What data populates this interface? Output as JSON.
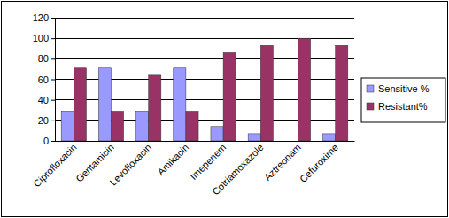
{
  "chart_data": {
    "type": "bar",
    "categories": [
      "Ciprofloxacin",
      "Gentamicin",
      "Levofloxacin",
      "Amikacin",
      "Imepenem",
      "Cotriamoxazole",
      "Aztreonam",
      "Cefuroxime"
    ],
    "series": [
      {
        "name": "Sensitive %",
        "color": "#9999ff",
        "values": [
          29,
          71,
          29,
          71,
          14,
          7,
          0,
          7
        ]
      },
      {
        "name": "Resistant%",
        "color": "#993366",
        "values": [
          71,
          29,
          64,
          29,
          86,
          93,
          100,
          93
        ]
      }
    ],
    "ylim": [
      0,
      120
    ],
    "yticks": [
      0,
      20,
      40,
      60,
      80,
      100,
      120
    ],
    "grid": true,
    "legend": "right"
  }
}
